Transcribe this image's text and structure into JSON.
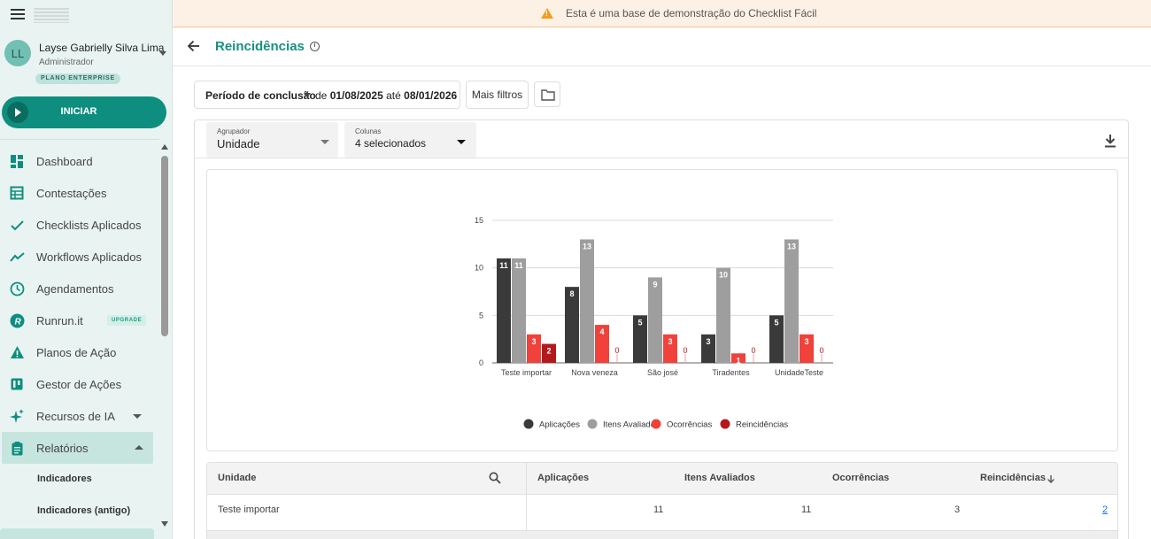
{
  "banner": {
    "text": "Esta é uma base de demonstração do Checklist Fácil"
  },
  "user": {
    "initials": "LL",
    "name": "Layse Gabrielly Silva Lima",
    "role": "Administrador",
    "plan": "PLANO ENTERPRISE"
  },
  "start_button": {
    "label": "INICIAR"
  },
  "sidebar": {
    "items": [
      {
        "label": "Dashboard",
        "icon": "dashboard-icon"
      },
      {
        "label": "Contestações",
        "icon": "table-icon"
      },
      {
        "label": "Checklists Aplicados",
        "icon": "check-icon"
      },
      {
        "label": "Workflows Aplicados",
        "icon": "trend-icon"
      },
      {
        "label": "Agendamentos",
        "icon": "clock-icon"
      },
      {
        "label": "Runrun.it",
        "icon": "runrun-icon",
        "badge": "UPGRADE"
      },
      {
        "label": "Planos de Ação",
        "icon": "warning-icon"
      },
      {
        "label": "Gestor de Ações",
        "icon": "kanban-icon"
      },
      {
        "label": "Recursos de IA",
        "icon": "sparkle-icon"
      },
      {
        "label": "Relatórios",
        "icon": "clipboard-icon"
      }
    ],
    "sub_items": [
      "Indicadores",
      "Indicadores (antigo)"
    ]
  },
  "page": {
    "title": "Reincidências"
  },
  "filters": {
    "period_label": "Período de conclusão",
    "period_prefix": "de",
    "period_start": "01/08/2025",
    "period_mid": "até",
    "period_end": "08/01/2026",
    "more_filters": "Mais filtros"
  },
  "grouping": {
    "label": "Agrupador",
    "value": "Unidade"
  },
  "columns": {
    "label": "Colunas",
    "value": "4 selecionados"
  },
  "chart_data": {
    "type": "bar",
    "categories": [
      "Teste importar",
      "Nova veneza",
      "São josé",
      "Tiradentes",
      "UnidadeTeste"
    ],
    "series": [
      {
        "name": "Aplicações",
        "color": "#3a3a3a",
        "values": [
          11,
          8,
          5,
          3,
          5
        ]
      },
      {
        "name": "Itens Avaliados",
        "color": "#9e9e9e",
        "values": [
          11,
          13,
          9,
          10,
          13
        ]
      },
      {
        "name": "Ocorrências",
        "color": "#f0413a",
        "values": [
          3,
          4,
          3,
          1,
          3
        ]
      },
      {
        "name": "Reincidências",
        "color": "#b3191c",
        "values": [
          2,
          0,
          0,
          0,
          0
        ]
      }
    ],
    "ylim": [
      0,
      15
    ],
    "yticks": [
      0,
      5,
      10,
      15
    ],
    "legend": "bottom",
    "grid": true
  },
  "table": {
    "headers": [
      "Unidade",
      "Aplicações",
      "Itens Avaliados",
      "Ocorrências",
      "Reincidências"
    ],
    "rows": [
      [
        "Teste importar",
        "11",
        "11",
        "3",
        "2"
      ]
    ]
  }
}
